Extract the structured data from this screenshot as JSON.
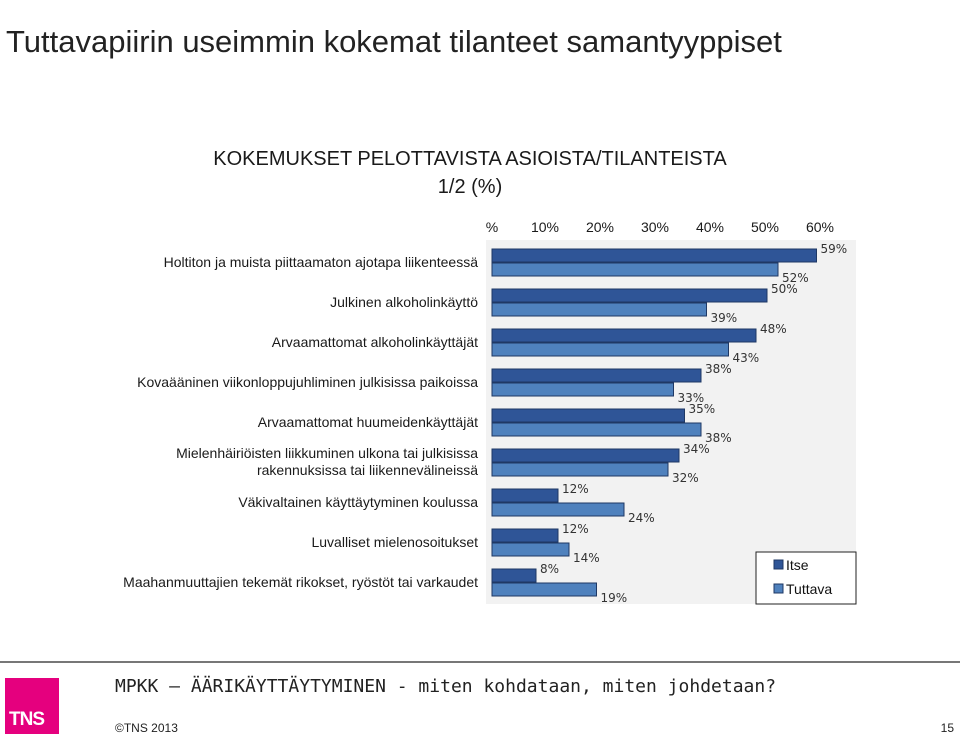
{
  "page": {
    "title": "Tuttavapiirin useimmin kokemat tilanteet samantyyppiset",
    "footer_title": "MPKK – ÄÄRIKÄYTTÄYTYMINEN - miten kohdataan, miten johdetaan?",
    "copyright": "©TNS 2013",
    "page_number": "15",
    "logo_text": "TNS"
  },
  "colors": {
    "itse": "#2f5597",
    "tuttava": "#4f81bd",
    "bar_border": "#1f3864",
    "plot_bg": "#f2f2f2",
    "logo": "#e5007e"
  },
  "chart_data": {
    "type": "bar",
    "orientation": "horizontal",
    "title": [
      "KOKEMUKSET PELOTTAVISTA ASIOISTA/TILANTEISTA",
      "1/2 (%)"
    ],
    "x_ticks": [
      "%",
      "10%",
      "20%",
      "30%",
      "40%",
      "50%",
      "60%"
    ],
    "xlim": [
      0,
      60
    ],
    "categories": [
      [
        "Holtiton ja muista piittaamaton ajotapa liikenteessä"
      ],
      [
        "Julkinen alkoholinkäyttö"
      ],
      [
        "Arvaamattomat alkoholinkäyttäjät"
      ],
      [
        "Kovaääninen viikonloppujuhliminen julkisissa paikoissa"
      ],
      [
        "Arvaamattomat huumeidenkäyttäjät"
      ],
      [
        "Mielenhäiriöisten liikkuminen ulkona tai julkisissa",
        "rakennuksissa tai liikennevälineissä"
      ],
      [
        "Väkivaltainen käyttäytyminen koulussa"
      ],
      [
        "Luvalliset mielenosoitukset"
      ],
      [
        "Maahanmuuttajien tekemät rikokset, ryöstöt tai varkaudet"
      ]
    ],
    "series": [
      {
        "name": "Itse",
        "values": [
          59,
          50,
          48,
          38,
          35,
          34,
          12,
          12,
          8
        ],
        "labels": [
          "59%",
          "50%",
          "48%",
          "38%",
          "35%",
          "34%",
          "12%",
          "12%",
          "8%"
        ]
      },
      {
        "name": "Tuttava",
        "values": [
          52,
          39,
          43,
          33,
          38,
          32,
          24,
          14,
          19
        ],
        "labels": [
          "52%",
          "39%",
          "43%",
          "33%",
          "38%",
          "32%",
          "24%",
          "14%",
          "19%"
        ]
      }
    ],
    "legend": {
      "position": "bottom-right",
      "entries": [
        "Itse",
        "Tuttava"
      ]
    }
  }
}
